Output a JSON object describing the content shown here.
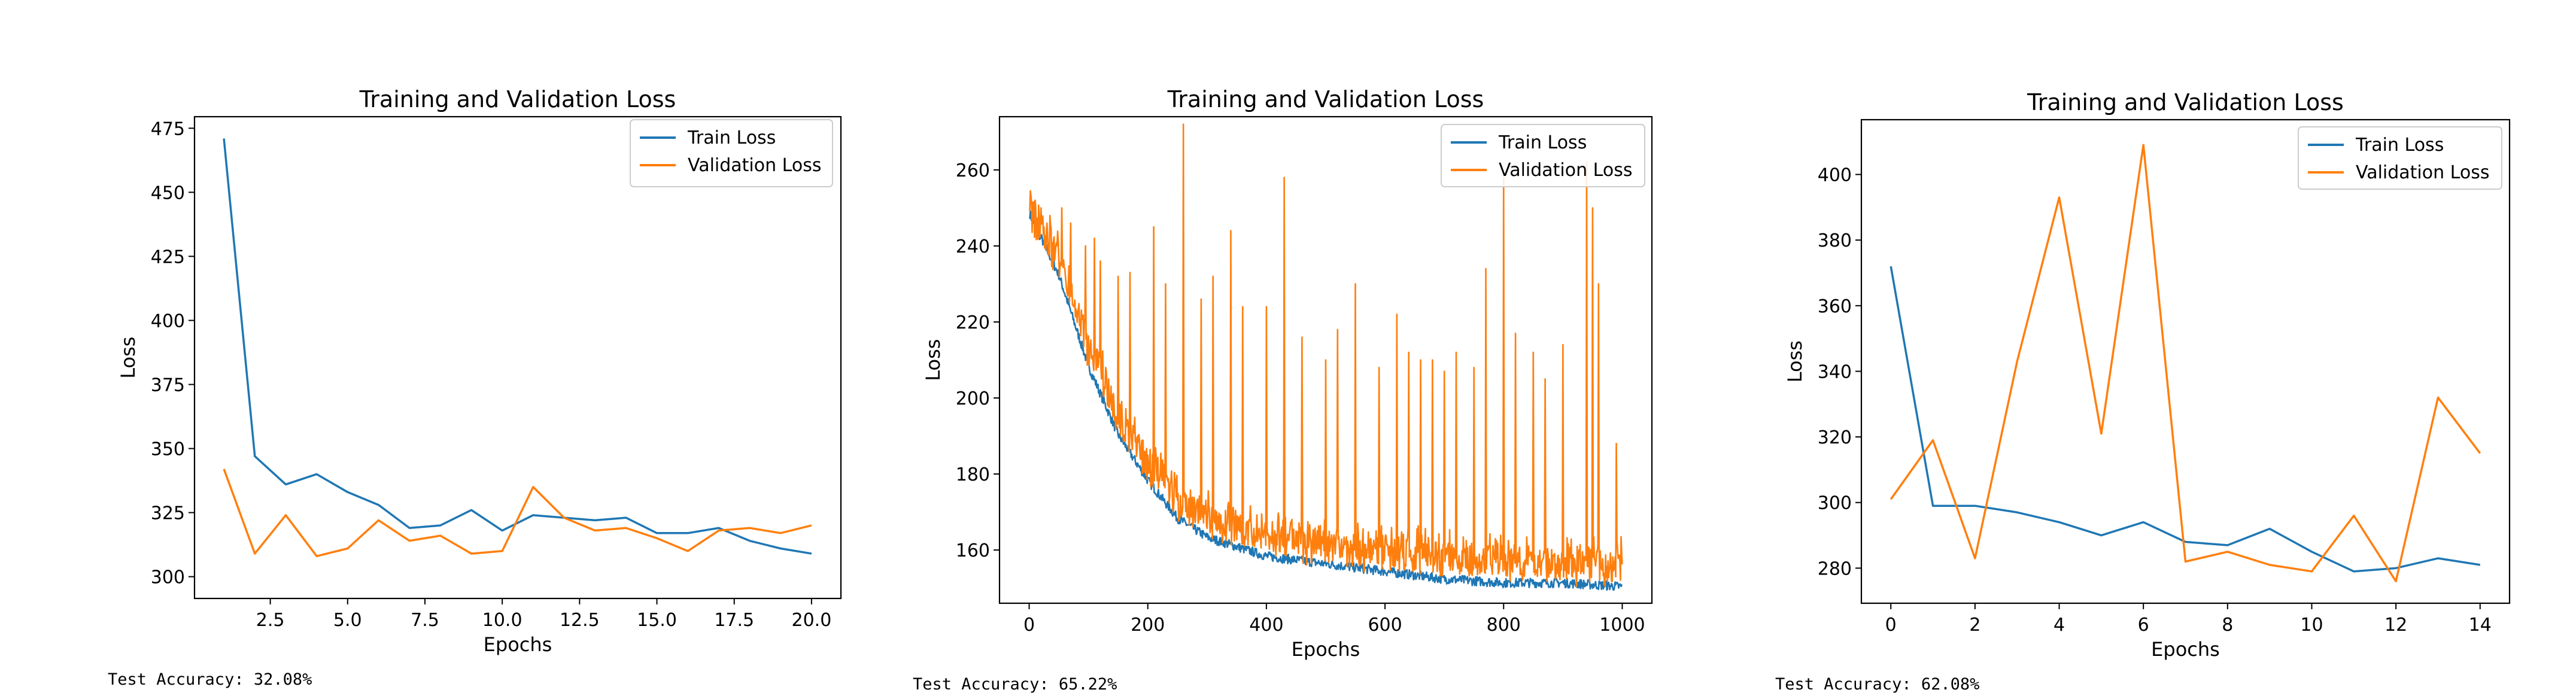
{
  "colors": {
    "train": "#1f77b4",
    "validation": "#ff7f0e"
  },
  "chart_data": [
    {
      "type": "line",
      "title": "Training and Validation Loss",
      "xlabel": "Epochs",
      "ylabel": "Loss",
      "xlim": [
        0.05,
        20.95
      ],
      "ylim": [
        291.5,
        479.5
      ],
      "xticks": [
        2.5,
        5.0,
        7.5,
        10.0,
        12.5,
        15.0,
        17.5,
        20.0
      ],
      "xtick_labels": [
        "2.5",
        "5.0",
        "7.5",
        "10.0",
        "12.5",
        "15.0",
        "17.5",
        "20.0"
      ],
      "yticks": [
        300,
        325,
        350,
        375,
        400,
        425,
        450,
        475
      ],
      "ytick_labels": [
        "300",
        "325",
        "350",
        "375",
        "400",
        "425",
        "450",
        "475"
      ],
      "grid": false,
      "legend_position": "top-right",
      "x": [
        1,
        2,
        3,
        4,
        5,
        6,
        7,
        8,
        9,
        10,
        11,
        12,
        13,
        14,
        15,
        16,
        17,
        18,
        19,
        20
      ],
      "series": [
        {
          "name": "Train Loss",
          "values": [
            471,
            347,
            336,
            340,
            333,
            328,
            319,
            320,
            326,
            318,
            324,
            323,
            322,
            323,
            317,
            317,
            319,
            314,
            311,
            309
          ]
        },
        {
          "name": "Validation Loss",
          "values": [
            342,
            309,
            324,
            308,
            311,
            322,
            314,
            316,
            309,
            310,
            335,
            323,
            318,
            319,
            315,
            310,
            318,
            319,
            317,
            320
          ]
        }
      ],
      "footer_text": "Test Accuracy: 32.08%"
    },
    {
      "type": "line",
      "title": "Training and Validation Loss",
      "xlabel": "Epochs",
      "ylabel": "Loss",
      "xlim": [
        -50,
        1050
      ],
      "ylim": [
        146,
        274
      ],
      "xticks": [
        0,
        200,
        400,
        600,
        800,
        1000
      ],
      "xtick_labels": [
        "0",
        "200",
        "400",
        "600",
        "800",
        "1000"
      ],
      "yticks": [
        160,
        180,
        200,
        220,
        240,
        260
      ],
      "ytick_labels": [
        "160",
        "180",
        "200",
        "220",
        "240",
        "260"
      ],
      "grid": false,
      "legend_position": "top-right",
      "x_range": [
        1,
        1000
      ],
      "series": [
        {
          "name": "Train Loss",
          "keypoints": [
            [
              1,
              248
            ],
            [
              50,
              232
            ],
            [
              100,
              208
            ],
            [
              150,
              190
            ],
            [
              200,
              178
            ],
            [
              250,
              168
            ],
            [
              300,
              163
            ],
            [
              400,
              158
            ],
            [
              500,
              156
            ],
            [
              600,
              154
            ],
            [
              700,
              152
            ],
            [
              800,
              151
            ],
            [
              900,
              151
            ],
            [
              1000,
              150
            ]
          ]
        },
        {
          "name": "Validation Loss",
          "keypoints": [
            [
              1,
              247
            ],
            [
              50,
              236
            ],
            [
              100,
              212
            ],
            [
              150,
              194
            ],
            [
              200,
              182
            ],
            [
              250,
              172
            ],
            [
              300,
              167
            ],
            [
              400,
              162
            ],
            [
              500,
              160
            ],
            [
              600,
              158
            ],
            [
              700,
              157
            ],
            [
              800,
              156
            ],
            [
              900,
              155
            ],
            [
              1000,
              155
            ]
          ],
          "spikes": [
            [
              10,
              252
            ],
            [
              20,
              250
            ],
            [
              35,
              248
            ],
            [
              55,
              250
            ],
            [
              70,
              246
            ],
            [
              95,
              240
            ],
            [
              110,
              242
            ],
            [
              120,
              236
            ],
            [
              150,
              232
            ],
            [
              170,
              233
            ],
            [
              210,
              245
            ],
            [
              230,
              230
            ],
            [
              260,
              272
            ],
            [
              290,
              226
            ],
            [
              310,
              232
            ],
            [
              340,
              244
            ],
            [
              360,
              224
            ],
            [
              400,
              224
            ],
            [
              430,
              258
            ],
            [
              460,
              216
            ],
            [
              500,
              210
            ],
            [
              520,
              218
            ],
            [
              550,
              230
            ],
            [
              590,
              208
            ],
            [
              620,
              222
            ],
            [
              640,
              212
            ],
            [
              660,
              210
            ],
            [
              680,
              210
            ],
            [
              700,
              207
            ],
            [
              720,
              212
            ],
            [
              750,
              208
            ],
            [
              770,
              234
            ],
            [
              800,
              258
            ],
            [
              820,
              217
            ],
            [
              850,
              212
            ],
            [
              870,
              205
            ],
            [
              900,
              214
            ],
            [
              940,
              262
            ],
            [
              950,
              250
            ],
            [
              960,
              230
            ],
            [
              990,
              188
            ]
          ]
        }
      ],
      "footer_text": "Test Accuracy: 65.22%"
    },
    {
      "type": "line",
      "title": "Training and Validation Loss",
      "xlabel": "Epochs",
      "ylabel": "Loss",
      "xlim": [
        -0.7,
        14.7
      ],
      "ylim": [
        269.3,
        416.7
      ],
      "xticks": [
        0,
        2,
        4,
        6,
        8,
        10,
        12,
        14
      ],
      "xtick_labels": [
        "0",
        "2",
        "4",
        "6",
        "8",
        "10",
        "12",
        "14"
      ],
      "yticks": [
        280,
        300,
        320,
        340,
        360,
        380,
        400
      ],
      "ytick_labels": [
        "280",
        "300",
        "320",
        "340",
        "360",
        "380",
        "400"
      ],
      "grid": false,
      "legend_position": "top-right",
      "x": [
        0,
        1,
        2,
        3,
        4,
        5,
        6,
        7,
        8,
        9,
        10,
        11,
        12,
        13,
        14
      ],
      "series": [
        {
          "name": "Train Loss",
          "values": [
            372,
            299,
            299,
            297,
            294,
            290,
            294,
            288,
            287,
            292,
            285,
            279,
            280,
            283,
            281
          ]
        },
        {
          "name": "Validation Loss",
          "values": [
            301,
            319,
            283,
            343,
            393,
            321,
            409,
            282,
            285,
            281,
            279,
            296,
            276,
            332,
            315
          ]
        }
      ],
      "footer_text": "Test Accuracy: 62.08%"
    }
  ]
}
